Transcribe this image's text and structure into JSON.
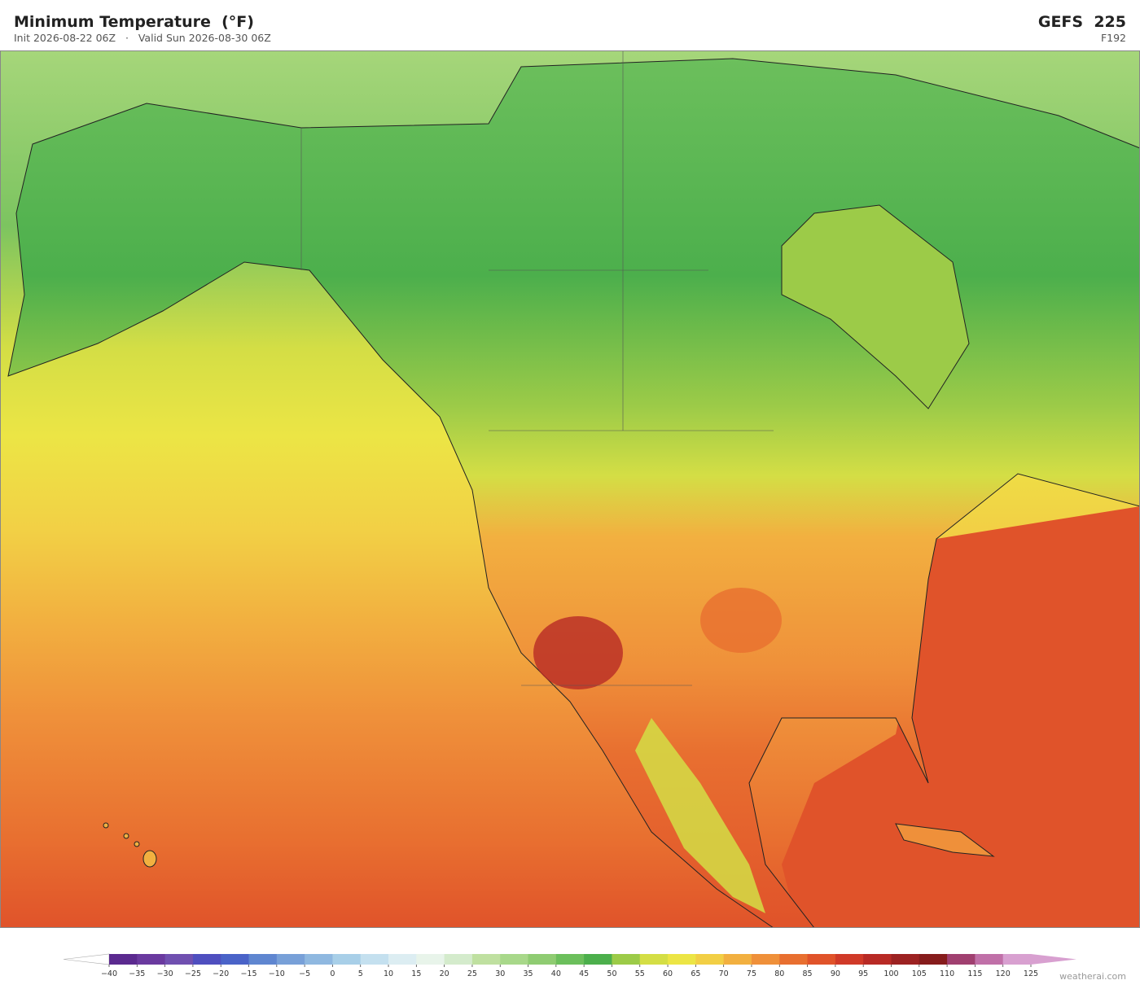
{
  "header": {
    "title": "Minimum Temperature  (°F)",
    "subtitle": "Init 2026-08-22 06Z   ·   Valid Sun 2026-08-30 06Z",
    "model": "GEFS  225",
    "forecast_hour": "F192"
  },
  "colorbar": {
    "ticks": [
      {
        "value": -40,
        "label": "−40"
      },
      {
        "value": -35,
        "label": "−35"
      },
      {
        "value": -30,
        "label": "−30"
      },
      {
        "value": -25,
        "label": "−25"
      },
      {
        "value": -20,
        "label": "−20"
      },
      {
        "value": -15,
        "label": "−15"
      },
      {
        "value": -10,
        "label": "−10"
      },
      {
        "value": -5,
        "label": "−5"
      },
      0,
      5,
      10,
      15,
      20,
      25,
      30,
      35,
      40,
      45,
      50,
      55,
      60,
      65,
      70,
      75,
      80,
      85,
      90,
      95,
      100,
      105,
      110,
      115,
      120,
      125
    ],
    "colors": [
      "#5b2a8f",
      "#6a3a9f",
      "#7050b0",
      "#4f4fbf",
      "#4a63c8",
      "#5f86d0",
      "#78a0d8",
      "#8fb8e0",
      "#a8cfe8",
      "#c4e0ef",
      "#dcedf2",
      "#e8f4ea",
      "#d4ebcc",
      "#bfe0a0",
      "#a8d88a",
      "#8fcc72",
      "#6cbf5c",
      "#4caf4c",
      "#9ccb48",
      "#d4de45",
      "#ece545",
      "#f2cf45",
      "#f2b040",
      "#ef903a",
      "#e86f30",
      "#e0532a",
      "#d03a28",
      "#b82a25",
      "#9c2222",
      "#861c1c",
      "#a04070",
      "#c070a8",
      "#d8a0d0"
    ],
    "under_color": "#ffffff",
    "over_color": "#d8a0d0"
  },
  "footer": {
    "watermark": "weatherai.com"
  }
}
